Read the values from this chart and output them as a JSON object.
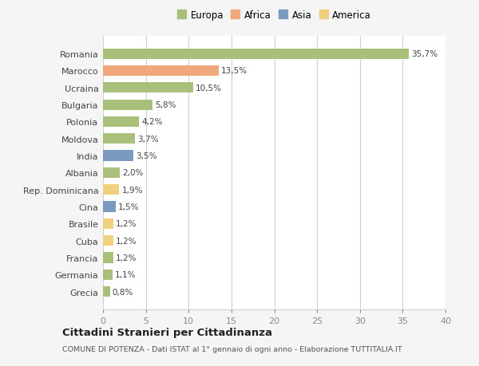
{
  "categories": [
    "Romania",
    "Marocco",
    "Ucraina",
    "Bulgaria",
    "Polonia",
    "Moldova",
    "India",
    "Albania",
    "Rep. Dominicana",
    "Cina",
    "Brasile",
    "Cuba",
    "Francia",
    "Germania",
    "Grecia"
  ],
  "values": [
    35.7,
    13.5,
    10.5,
    5.8,
    4.2,
    3.7,
    3.5,
    2.0,
    1.9,
    1.5,
    1.2,
    1.2,
    1.2,
    1.1,
    0.8
  ],
  "labels": [
    "35,7%",
    "13,5%",
    "10,5%",
    "5,8%",
    "4,2%",
    "3,7%",
    "3,5%",
    "2,0%",
    "1,9%",
    "1,5%",
    "1,2%",
    "1,2%",
    "1,2%",
    "1,1%",
    "0,8%"
  ],
  "colors": [
    "#a8c07a",
    "#f0a87a",
    "#a8c07a",
    "#a8c07a",
    "#a8c07a",
    "#a8c07a",
    "#7a9abf",
    "#a8c07a",
    "#f0d080",
    "#7a9abf",
    "#f0d080",
    "#f0d080",
    "#a8c07a",
    "#a8c07a",
    "#a8c07a"
  ],
  "continent_colors": {
    "Europa": "#a8c07a",
    "Africa": "#f0a87a",
    "Asia": "#7a9abf",
    "America": "#f0d080"
  },
  "xlim": [
    0,
    40
  ],
  "xticks": [
    0,
    5,
    10,
    15,
    20,
    25,
    30,
    35,
    40
  ],
  "title": "Cittadini Stranieri per Cittadinanza",
  "subtitle": "COMUNE DI POTENZA - Dati ISTAT al 1° gennaio di ogni anno - Elaborazione TUTTITALIA.IT",
  "background_color": "#f5f5f5",
  "bar_background": "#ffffff",
  "grid_color": "#d0d0d0"
}
